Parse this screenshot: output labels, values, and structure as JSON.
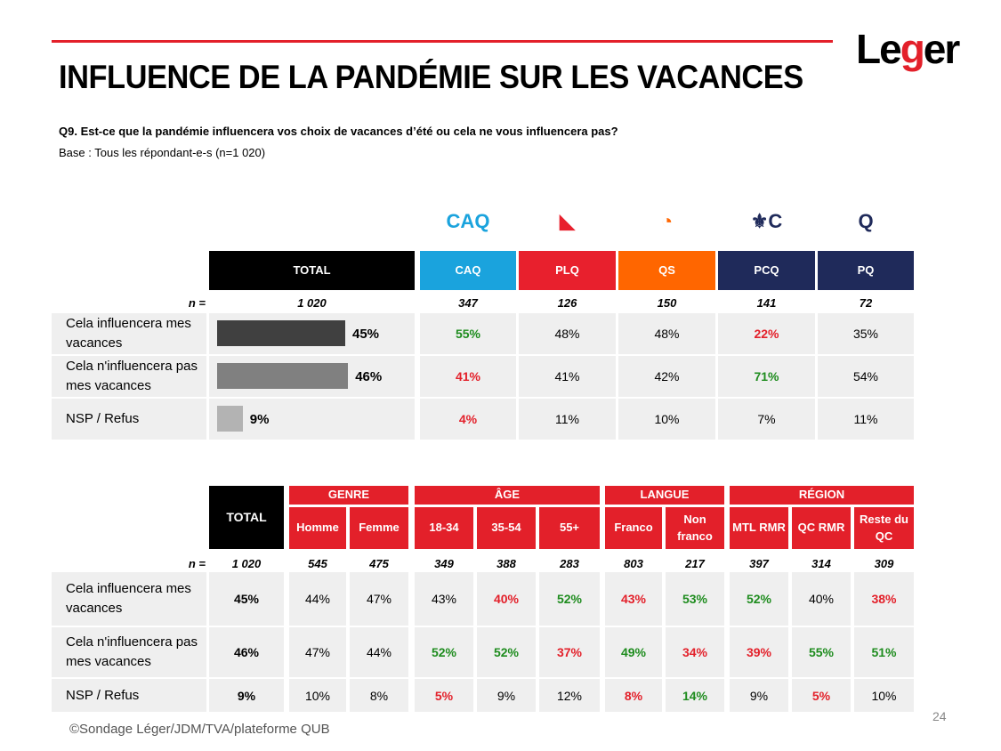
{
  "title": "INFLUENCE DE LA PANDÉMIE SUR LES VACANCES",
  "logo": "Léger",
  "question": "Q9. Est-ce que la pandémie influencera vos choix de vacances d’été ou cela ne vous influencera pas?",
  "base": "Base : Tous les répondant-e-s (n=1 020)",
  "n_label": "n =",
  "rows": [
    "Cela influencera mes vacances",
    "Cela n'influencera pas mes vacances",
    "NSP / Refus"
  ],
  "colors": {
    "green": "#1e8c1e",
    "red": "#e3202a",
    "caq": "#1aa3dd",
    "plq": "#e8202d",
    "qs": "#ff6600",
    "pcq": "#1f2a5a",
    "pq": "#1f2a5a"
  },
  "top": {
    "total": {
      "label": "TOTAL",
      "n": "1 020",
      "values": [
        "45%",
        "46%",
        "9%"
      ],
      "bar_values": [
        45,
        46,
        9
      ],
      "bar_colors": [
        "#404040",
        "#808080",
        "#b3b3b3"
      ]
    },
    "columns": [
      {
        "label": "CAQ",
        "icon": "caq-logo",
        "color": "#1aa3dd",
        "n": "347",
        "values": [
          "55%",
          "41%",
          "4%"
        ],
        "styles": [
          "g",
          "r",
          "r"
        ]
      },
      {
        "label": "PLQ",
        "icon": "plq-logo",
        "color": "#e8202d",
        "n": "126",
        "values": [
          "48%",
          "41%",
          "11%"
        ],
        "styles": [
          "",
          "",
          ""
        ]
      },
      {
        "label": "QS",
        "icon": "qs-logo",
        "color": "#ff6600",
        "n": "150",
        "values": [
          "48%",
          "42%",
          "10%"
        ],
        "styles": [
          "",
          "",
          ""
        ]
      },
      {
        "label": "PCQ",
        "icon": "pcq-logo",
        "color": "#1f2a5a",
        "n": "141",
        "values": [
          "22%",
          "71%",
          "7%"
        ],
        "styles": [
          "r",
          "g",
          ""
        ]
      },
      {
        "label": "PQ",
        "icon": "pq-logo",
        "color": "#1f2a5a",
        "n": "72",
        "values": [
          "35%",
          "54%",
          "11%"
        ],
        "styles": [
          "",
          "",
          ""
        ]
      }
    ]
  },
  "bottom": {
    "total": {
      "label": "TOTAL",
      "n": "1 020",
      "values": [
        "45%",
        "46%",
        "9%"
      ]
    },
    "groups": [
      {
        "label": "GENRE",
        "span": 2
      },
      {
        "label": "ÂGE",
        "span": 3
      },
      {
        "label": "LANGUE",
        "span": 2
      },
      {
        "label": "RÉGION",
        "span": 3
      }
    ],
    "columns": [
      {
        "label": "Homme",
        "n": "545",
        "values": [
          "44%",
          "47%",
          "10%"
        ],
        "styles": [
          "",
          "",
          ""
        ]
      },
      {
        "label": "Femme",
        "n": "475",
        "values": [
          "47%",
          "44%",
          "8%"
        ],
        "styles": [
          "",
          "",
          ""
        ]
      },
      {
        "label": "18-34",
        "n": "349",
        "values": [
          "43%",
          "52%",
          "5%"
        ],
        "styles": [
          "",
          "g",
          "r"
        ]
      },
      {
        "label": "35-54",
        "n": "388",
        "values": [
          "40%",
          "52%",
          "9%"
        ],
        "styles": [
          "r",
          "g",
          ""
        ]
      },
      {
        "label": "55+",
        "n": "283",
        "values": [
          "52%",
          "37%",
          "12%"
        ],
        "styles": [
          "g",
          "r",
          ""
        ]
      },
      {
        "label": "Franco",
        "n": "803",
        "values": [
          "43%",
          "49%",
          "8%"
        ],
        "styles": [
          "r",
          "g",
          "r"
        ]
      },
      {
        "label": "Non franco",
        "n": "217",
        "values": [
          "53%",
          "34%",
          "14%"
        ],
        "styles": [
          "g",
          "r",
          "g"
        ]
      },
      {
        "label": "MTL RMR",
        "n": "397",
        "values": [
          "52%",
          "39%",
          "9%"
        ],
        "styles": [
          "g",
          "r",
          ""
        ]
      },
      {
        "label": "QC RMR",
        "n": "314",
        "values": [
          "40%",
          "55%",
          "5%"
        ],
        "styles": [
          "",
          "g",
          "r"
        ]
      },
      {
        "label": "Reste du QC",
        "n": "309",
        "values": [
          "38%",
          "51%",
          "10%"
        ],
        "styles": [
          "r",
          "g",
          ""
        ]
      }
    ]
  },
  "footer": "©Sondage Léger/JDM/TVA/plateforme QUB",
  "page_number": "24"
}
